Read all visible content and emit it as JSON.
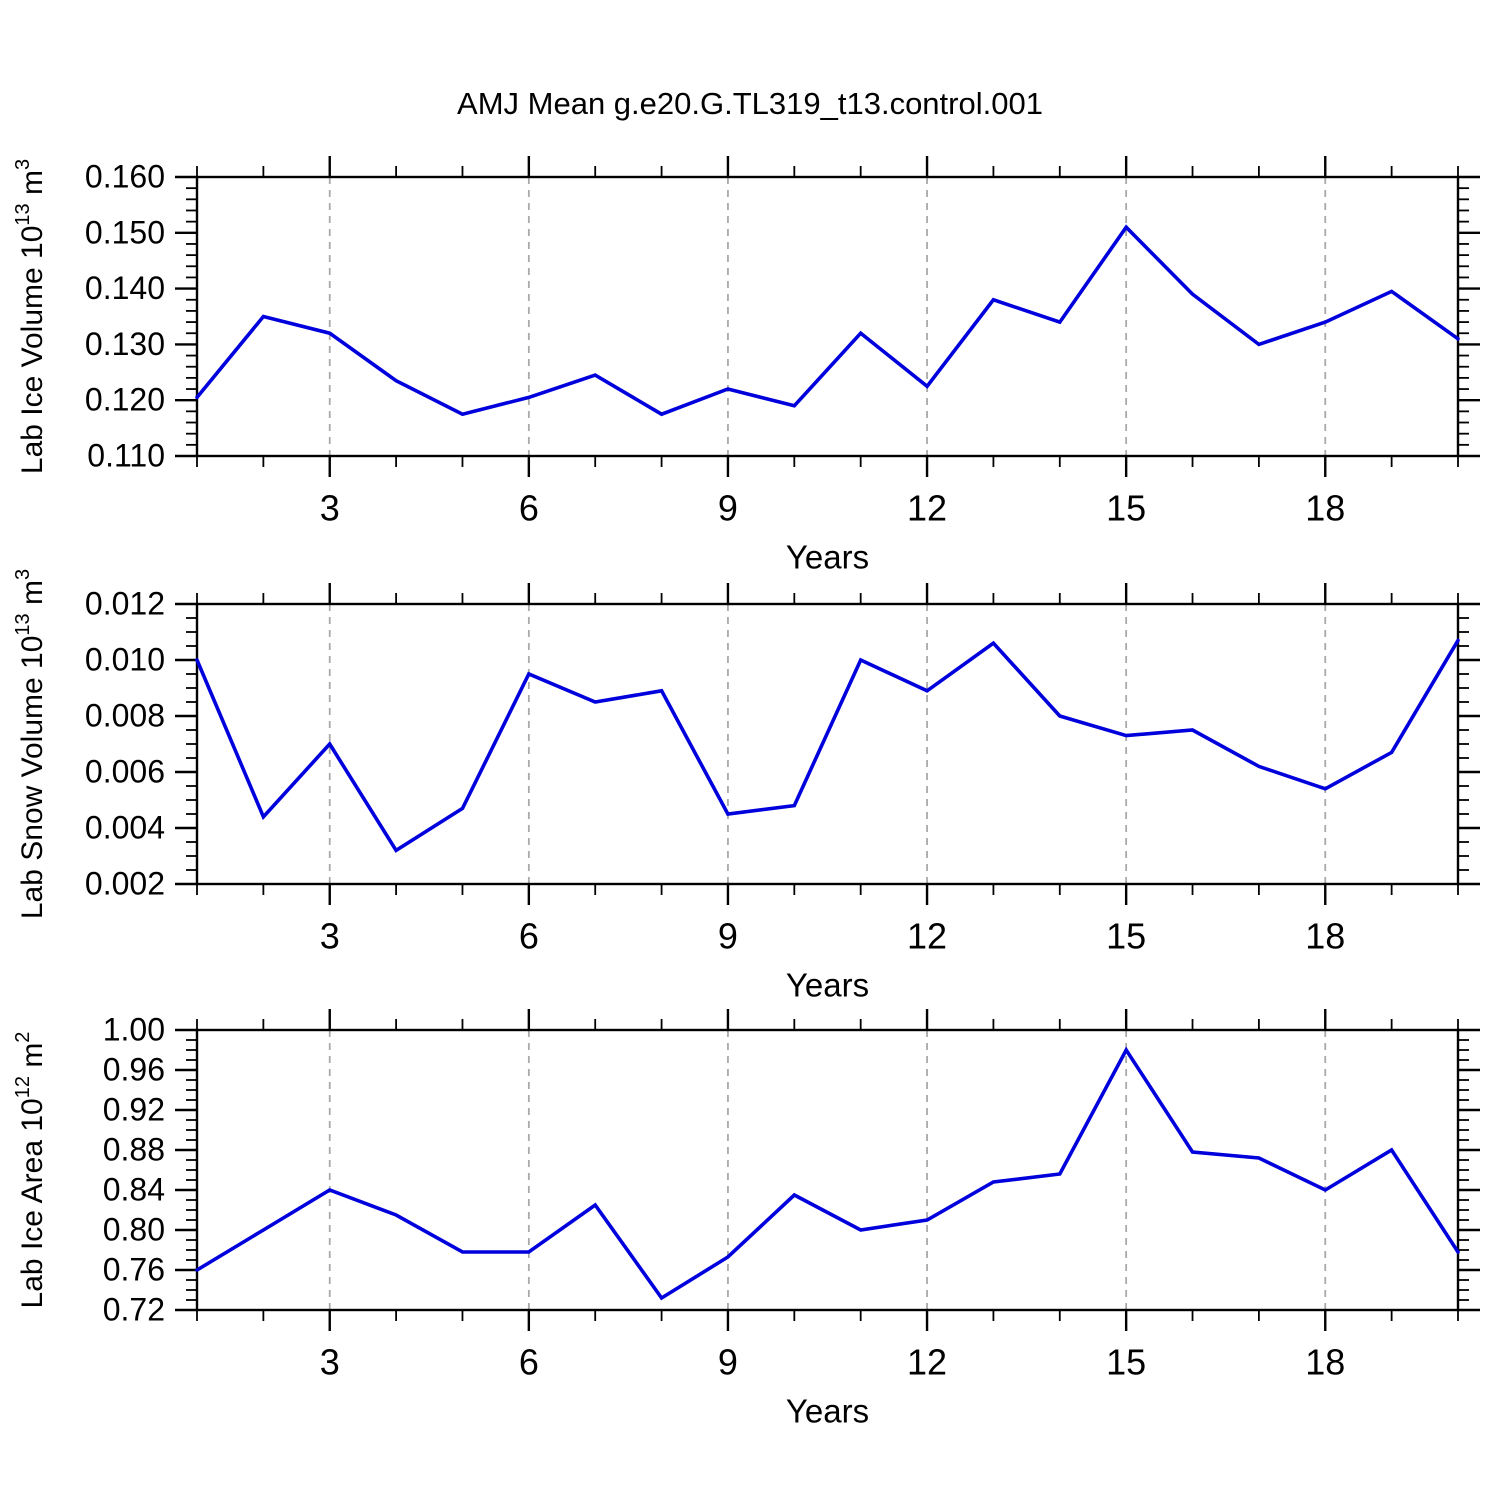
{
  "page": {
    "title": "AMJ Mean g.e20.G.TL319_t13.control.001"
  },
  "style": {
    "line_color": "#0000dd",
    "axis_color": "#000000",
    "grid_color": "#a9a9a9",
    "text_color": "#000000"
  },
  "chart_data": [
    {
      "type": "line",
      "name": "lab-ice-volume",
      "ylabel_plain": "Lab Ice Volume 10^13 m^3",
      "ylabel_parts": [
        {
          "t": "Lab Ice Volume 10"
        },
        {
          "t": "13",
          "sup": true
        },
        {
          "t": " m"
        },
        {
          "t": "3",
          "sup": true
        }
      ],
      "xlabel": "Years",
      "x": [
        1,
        2,
        3,
        4,
        5,
        6,
        7,
        8,
        9,
        10,
        11,
        12,
        13,
        14,
        15,
        16,
        17,
        18,
        19,
        20
      ],
      "values": [
        0.1205,
        0.135,
        0.132,
        0.1235,
        0.1175,
        0.1205,
        0.1245,
        0.1175,
        0.122,
        0.119,
        0.132,
        0.1225,
        0.138,
        0.134,
        0.151,
        0.139,
        0.13,
        0.134,
        0.1395,
        0.131
      ],
      "xlim": [
        1,
        20
      ],
      "ylim": [
        0.11,
        0.16
      ],
      "yticks": {
        "values": [
          0.11,
          0.12,
          0.13,
          0.14,
          0.15,
          0.16
        ],
        "labels": [
          "0.110",
          "0.120",
          "0.130",
          "0.140",
          "0.150",
          "0.160"
        ]
      },
      "y_minor_step": 0.002,
      "xticks": {
        "major": [
          3,
          6,
          9,
          12,
          15,
          18
        ],
        "labels": [
          "3",
          "6",
          "9",
          "12",
          "15",
          "18"
        ],
        "minor_every": 1
      },
      "grid": "vertical-dashed-at-major-x",
      "legend": "none"
    },
    {
      "type": "line",
      "name": "lab-snow-volume",
      "ylabel_plain": "Lab Snow Volume 10^13 m^3",
      "ylabel_parts": [
        {
          "t": "Lab Snow Volume 10"
        },
        {
          "t": "13",
          "sup": true
        },
        {
          "t": " m"
        },
        {
          "t": "3",
          "sup": true
        }
      ],
      "xlabel": "Years",
      "x": [
        1,
        2,
        3,
        4,
        5,
        6,
        7,
        8,
        9,
        10,
        11,
        12,
        13,
        14,
        15,
        16,
        17,
        18,
        19,
        20
      ],
      "values": [
        0.01,
        0.0044,
        0.007,
        0.0032,
        0.0047,
        0.0095,
        0.0085,
        0.0089,
        0.0045,
        0.0048,
        0.01,
        0.0089,
        0.0106,
        0.008,
        0.0073,
        0.0075,
        0.0062,
        0.0054,
        0.0067,
        0.0107
      ],
      "xlim": [
        1,
        20
      ],
      "ylim": [
        0.002,
        0.012
      ],
      "yticks": {
        "values": [
          0.002,
          0.004,
          0.006,
          0.008,
          0.01,
          0.012
        ],
        "labels": [
          "0.002",
          "0.004",
          "0.006",
          "0.008",
          "0.010",
          "0.012"
        ]
      },
      "y_minor_step": 0.0005,
      "xticks": {
        "major": [
          3,
          6,
          9,
          12,
          15,
          18
        ],
        "labels": [
          "3",
          "6",
          "9",
          "12",
          "15",
          "18"
        ],
        "minor_every": 1
      },
      "grid": "vertical-dashed-at-major-x",
      "legend": "none"
    },
    {
      "type": "line",
      "name": "lab-ice-area",
      "ylabel_plain": "Lab Ice Area 10^12 m^2",
      "ylabel_parts": [
        {
          "t": "Lab Ice Area 10"
        },
        {
          "t": "12",
          "sup": true
        },
        {
          "t": " m"
        },
        {
          "t": "2",
          "sup": true
        }
      ],
      "xlabel": "Years",
      "x": [
        1,
        2,
        3,
        4,
        5,
        6,
        7,
        8,
        9,
        10,
        11,
        12,
        13,
        14,
        15,
        16,
        17,
        18,
        19,
        20
      ],
      "values": [
        0.76,
        0.8,
        0.84,
        0.815,
        0.778,
        0.778,
        0.825,
        0.732,
        0.773,
        0.835,
        0.8,
        0.81,
        0.848,
        0.856,
        0.98,
        0.878,
        0.872,
        0.84,
        0.88,
        0.778
      ],
      "xlim": [
        1,
        20
      ],
      "ylim": [
        0.72,
        1.0
      ],
      "yticks": {
        "values": [
          0.72,
          0.76,
          0.8,
          0.84,
          0.88,
          0.92,
          0.96,
          1.0
        ],
        "labels": [
          "0.72",
          "0.76",
          "0.80",
          "0.84",
          "0.88",
          "0.92",
          "0.96",
          "1.00"
        ]
      },
      "y_minor_step": 0.01,
      "xticks": {
        "major": [
          3,
          6,
          9,
          12,
          15,
          18
        ],
        "labels": [
          "3",
          "6",
          "9",
          "12",
          "15",
          "18"
        ],
        "minor_every": 1
      },
      "grid": "vertical-dashed-at-major-x",
      "legend": "none"
    }
  ]
}
